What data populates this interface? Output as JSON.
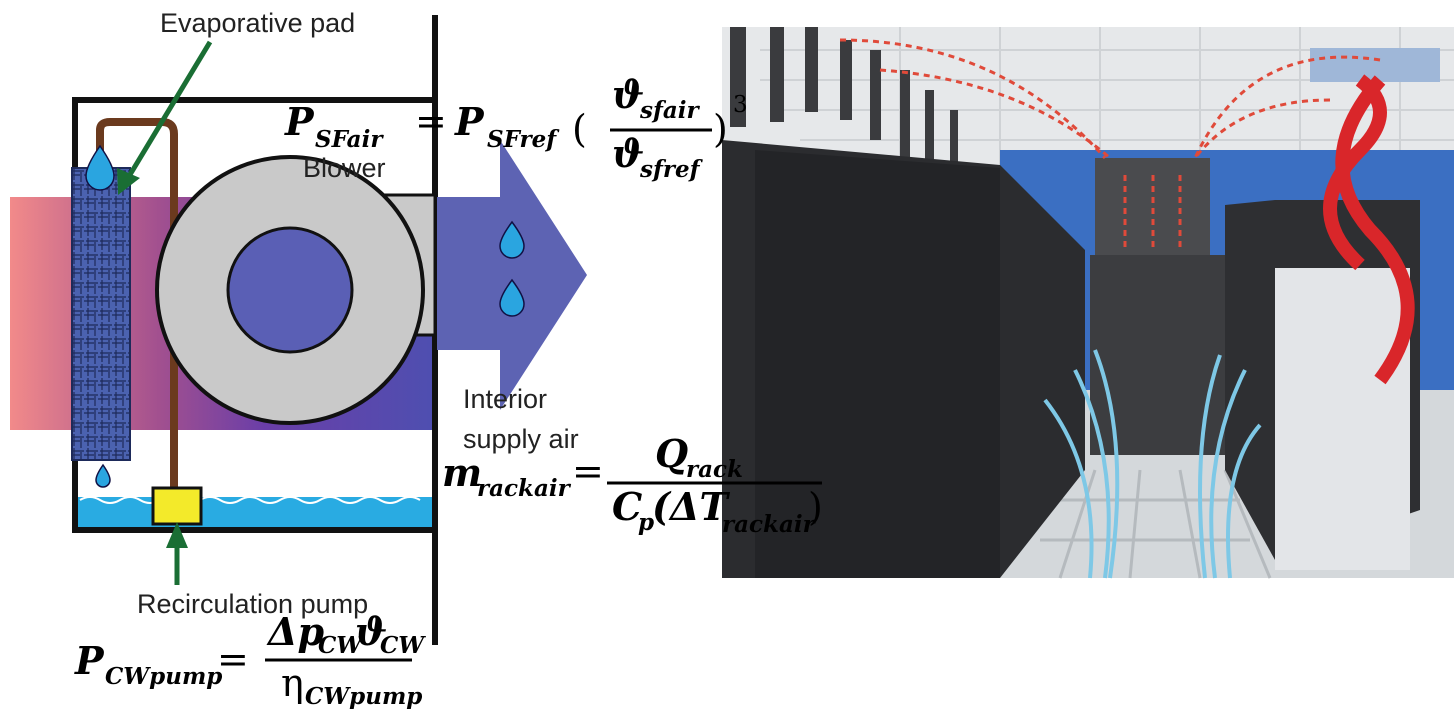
{
  "labels": {
    "evaporative_pad": "Evaporative pad",
    "blower": "Blower",
    "interior_supply_air": [
      "Interior",
      "supply air"
    ],
    "recirculation_pump": "Recirculation pump"
  },
  "equations": {
    "fan": {
      "lhs": "P",
      "lhs_sub": "SFair",
      "equals": "=",
      "ref": "P",
      "ref_sub": "SFref",
      "open": "(",
      "num": "ϑ",
      "num_sub": "sfair",
      "den": "ϑ",
      "den_sub": "sfref",
      "close": ")",
      "exponent": "3"
    },
    "rack": {
      "lhs": "m",
      "lhs_sub": "rackair",
      "equals": "=",
      "num": "Q",
      "num_sub": "rack",
      "den_c": "C",
      "den_c_sub": "p",
      "den_open": "(ΔT",
      "den_sub": "rackair",
      "den_close": ")"
    },
    "pump": {
      "lhs": "P",
      "lhs_sub": "CWpump",
      "equals": "=",
      "num_dp": "Δp",
      "num_dp_sub": "CW",
      "num_v": "ϑ",
      "num_v_sub": "CW",
      "den": "η",
      "den_sub": "CWpump"
    }
  }
}
